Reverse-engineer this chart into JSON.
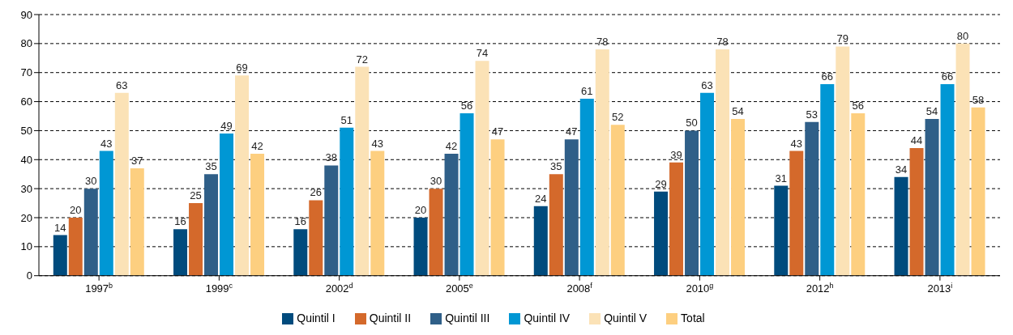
{
  "chart_data": {
    "type": "bar",
    "categories": [
      "1997$^{b}$",
      "1999$^{c}$",
      "2002$^{d}$",
      "2005$^{e}$",
      "2008$^{f}$",
      "2010$^{g}$",
      "2012$^{h}$",
      "2013$^{i}$"
    ],
    "series": [
      {
        "name": "Quintil I",
        "color": "#004b7d",
        "values": [
          14,
          16,
          16,
          20,
          24,
          29,
          31,
          34
        ]
      },
      {
        "name": "Quintil II",
        "color": "#d4692b",
        "values": [
          20,
          25,
          26,
          30,
          35,
          39,
          43,
          44
        ]
      },
      {
        "name": "Quintil III",
        "color": "#2f5f88",
        "values": [
          30,
          35,
          38,
          42,
          47,
          50,
          53,
          54
        ]
      },
      {
        "name": "Quintil IV",
        "color": "#0097d4",
        "values": [
          43,
          49,
          51,
          56,
          61,
          63,
          66,
          66
        ]
      },
      {
        "name": "Quintil V",
        "color": "#fbe2b6",
        "values": [
          63,
          69,
          72,
          74,
          78,
          78,
          79,
          80
        ]
      },
      {
        "name": "Total",
        "color": "#fdcf80",
        "values": [
          37,
          42,
          43,
          47,
          52,
          54,
          56,
          58
        ]
      }
    ],
    "ylim": [
      0,
      90
    ],
    "yticks": [
      0,
      10,
      20,
      30,
      40,
      50,
      60,
      70,
      80,
      90
    ],
    "grid": "y",
    "legend": "bottom",
    "data_labels": true
  }
}
